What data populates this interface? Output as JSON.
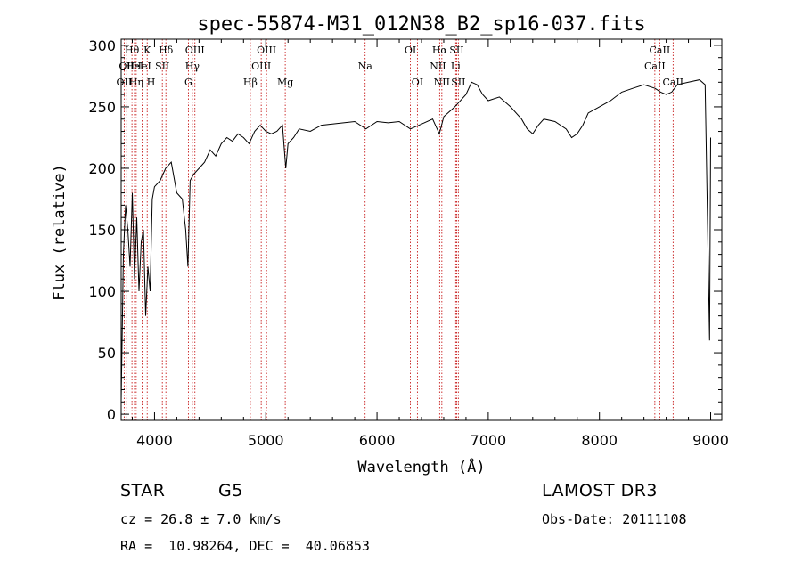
{
  "chart_data": {
    "type": "line",
    "title": "spec-55874-M31_012N38_B2_sp16-037.fits",
    "xlabel": "Wavelength (Å)",
    "ylabel": "Flux (relative)",
    "xlim": [
      3700,
      9100
    ],
    "ylim": [
      -5,
      305
    ],
    "xticks": [
      4000,
      5000,
      6000,
      7000,
      8000,
      9000
    ],
    "yticks": [
      0,
      50,
      100,
      150,
      200,
      250,
      300
    ],
    "series": [
      {
        "name": "flux",
        "x": [
          3700,
          3720,
          3740,
          3760,
          3780,
          3800,
          3820,
          3840,
          3860,
          3880,
          3900,
          3920,
          3940,
          3960,
          3980,
          4000,
          4050,
          4100,
          4150,
          4200,
          4250,
          4280,
          4300,
          4320,
          4350,
          4400,
          4450,
          4500,
          4550,
          4600,
          4650,
          4700,
          4750,
          4800,
          4850,
          4900,
          4950,
          5000,
          5050,
          5100,
          5150,
          5180,
          5200,
          5250,
          5300,
          5400,
          5500,
          5600,
          5700,
          5800,
          5900,
          6000,
          6100,
          6200,
          6300,
          6400,
          6500,
          6560,
          6600,
          6700,
          6800,
          6850,
          6900,
          6950,
          7000,
          7100,
          7200,
          7300,
          7350,
          7400,
          7450,
          7500,
          7600,
          7700,
          7750,
          7800,
          7850,
          7900,
          8000,
          8100,
          8200,
          8300,
          8400,
          8500,
          8550,
          8600,
          8650,
          8700,
          8800,
          8900,
          8950,
          8990,
          9000
        ],
        "values": [
          10,
          130,
          170,
          150,
          120,
          180,
          110,
          160,
          100,
          140,
          150,
          80,
          120,
          100,
          175,
          185,
          190,
          200,
          205,
          180,
          175,
          150,
          120,
          190,
          195,
          200,
          205,
          215,
          210,
          220,
          225,
          222,
          228,
          225,
          220,
          230,
          235,
          230,
          228,
          230,
          235,
          200,
          220,
          225,
          232,
          230,
          235,
          236,
          237,
          238,
          232,
          238,
          237,
          238,
          232,
          236,
          240,
          228,
          242,
          250,
          260,
          270,
          268,
          260,
          255,
          258,
          250,
          240,
          232,
          228,
          235,
          240,
          238,
          232,
          225,
          228,
          235,
          245,
          250,
          255,
          262,
          265,
          268,
          265,
          262,
          260,
          262,
          268,
          270,
          272,
          268,
          60,
          225
        ]
      }
    ],
    "lines": [
      {
        "w": 3727,
        "label": "OII",
        "row": 2
      },
      {
        "w": 3750,
        "label": "OII",
        "row": 1
      },
      {
        "w": 3797,
        "label": "Hθ",
        "row": 0
      },
      {
        "w": 3820,
        "label": "HeI",
        "row": 1
      },
      {
        "w": 3835,
        "label": "Hη",
        "row": 2
      },
      {
        "w": 3889,
        "label": "HeI",
        "row": 1
      },
      {
        "w": 3934,
        "label": "K",
        "row": 0
      },
      {
        "w": 3969,
        "label": "H",
        "row": 2
      },
      {
        "w": 4070,
        "label": "SII",
        "row": 1
      },
      {
        "w": 4102,
        "label": "Hδ",
        "row": 0
      },
      {
        "w": 4304,
        "label": "G",
        "row": 2
      },
      {
        "w": 4340,
        "label": "Hγ",
        "row": 1
      },
      {
        "w": 4363,
        "label": "OIII",
        "row": 0
      },
      {
        "w": 4861,
        "label": "Hβ",
        "row": 2
      },
      {
        "w": 4959,
        "label": "OIII",
        "row": 1
      },
      {
        "w": 5007,
        "label": "OIII",
        "row": 0
      },
      {
        "w": 5175,
        "label": "Mg",
        "row": 2
      },
      {
        "w": 5893,
        "label": "Na",
        "row": 1
      },
      {
        "w": 6300,
        "label": "OI",
        "row": 0
      },
      {
        "w": 6363,
        "label": "OI",
        "row": 2
      },
      {
        "w": 6548,
        "label": "NII",
        "row": 1
      },
      {
        "w": 6563,
        "label": "Hα",
        "row": 0
      },
      {
        "w": 6583,
        "label": "NII",
        "row": 2
      },
      {
        "w": 6707,
        "label": "Li",
        "row": 1
      },
      {
        "w": 6716,
        "label": "SII",
        "row": 0
      },
      {
        "w": 6731,
        "label": "SII",
        "row": 2
      },
      {
        "w": 8498,
        "label": "CaII",
        "row": 1
      },
      {
        "w": 8542,
        "label": "CaII",
        "row": 0
      },
      {
        "w": 8662,
        "label": "CaII",
        "row": 2
      }
    ]
  },
  "info": {
    "class": "STAR",
    "subclass": "G5",
    "survey": "LAMOST DR3",
    "cz": "cz = 26.8 ± 7.0 km/s",
    "obs_date": "Obs-Date: 20111108",
    "coords": "RA =  10.98264, DEC =  40.06853"
  },
  "colors": {
    "spectrum": "#000000",
    "line_marker": "#c00000"
  }
}
